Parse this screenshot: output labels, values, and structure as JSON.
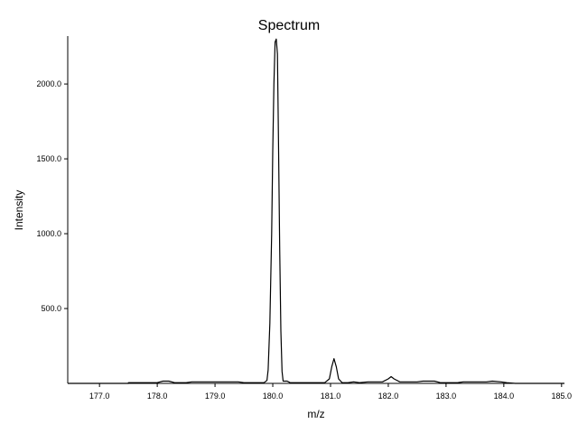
{
  "chart_data": {
    "type": "line",
    "title": "Spectrum",
    "xlabel": "m/z",
    "ylabel": "Intensity",
    "xlim": [
      176.45,
      185.05
    ],
    "ylim": [
      0,
      2320
    ],
    "x_ticks": [
      177.0,
      178.0,
      179.0,
      180.0,
      181.0,
      182.0,
      183.0,
      184.0,
      185.0
    ],
    "x_tick_labels": [
      "177.0",
      "178.0",
      "179.0",
      "180.0",
      "181.0",
      "182.0",
      "183.0",
      "184.0",
      "185.0"
    ],
    "y_ticks": [
      500,
      1000,
      1500,
      2000
    ],
    "y_tick_labels": [
      "500.0",
      "1000.0",
      "1500.0",
      "2000.0"
    ],
    "grid": false,
    "series": [
      {
        "values": [
          [
            176.45,
            0
          ],
          [
            177.5,
            0
          ],
          [
            177.5,
            5
          ],
          [
            178.0,
            5
          ],
          [
            178.1,
            15
          ],
          [
            178.2,
            15
          ],
          [
            178.3,
            5
          ],
          [
            178.5,
            5
          ],
          [
            178.6,
            10
          ],
          [
            179.4,
            10
          ],
          [
            179.5,
            5
          ],
          [
            179.85,
            5
          ],
          [
            179.9,
            20
          ],
          [
            179.92,
            90
          ],
          [
            179.95,
            400
          ],
          [
            179.98,
            1000
          ],
          [
            180.0,
            1550
          ],
          [
            180.02,
            2000
          ],
          [
            180.04,
            2280
          ],
          [
            180.06,
            2300
          ],
          [
            180.08,
            2200
          ],
          [
            180.1,
            1600
          ],
          [
            180.12,
            900
          ],
          [
            180.14,
            350
          ],
          [
            180.16,
            80
          ],
          [
            180.18,
            15
          ],
          [
            180.25,
            15
          ],
          [
            180.3,
            5
          ],
          [
            180.9,
            5
          ],
          [
            180.98,
            30
          ],
          [
            181.02,
            110
          ],
          [
            181.06,
            165
          ],
          [
            181.1,
            110
          ],
          [
            181.14,
            30
          ],
          [
            181.2,
            5
          ],
          [
            181.3,
            5
          ],
          [
            181.4,
            10
          ],
          [
            181.5,
            5
          ],
          [
            181.65,
            10
          ],
          [
            181.9,
            10
          ],
          [
            182.0,
            30
          ],
          [
            182.05,
            45
          ],
          [
            182.1,
            30
          ],
          [
            182.2,
            10
          ],
          [
            182.5,
            10
          ],
          [
            182.6,
            15
          ],
          [
            182.8,
            15
          ],
          [
            182.9,
            5
          ],
          [
            183.2,
            5
          ],
          [
            183.3,
            10
          ],
          [
            183.7,
            10
          ],
          [
            183.8,
            15
          ],
          [
            183.95,
            10
          ],
          [
            184.05,
            5
          ],
          [
            184.2,
            0
          ],
          [
            185.05,
            0
          ]
        ]
      }
    ]
  }
}
